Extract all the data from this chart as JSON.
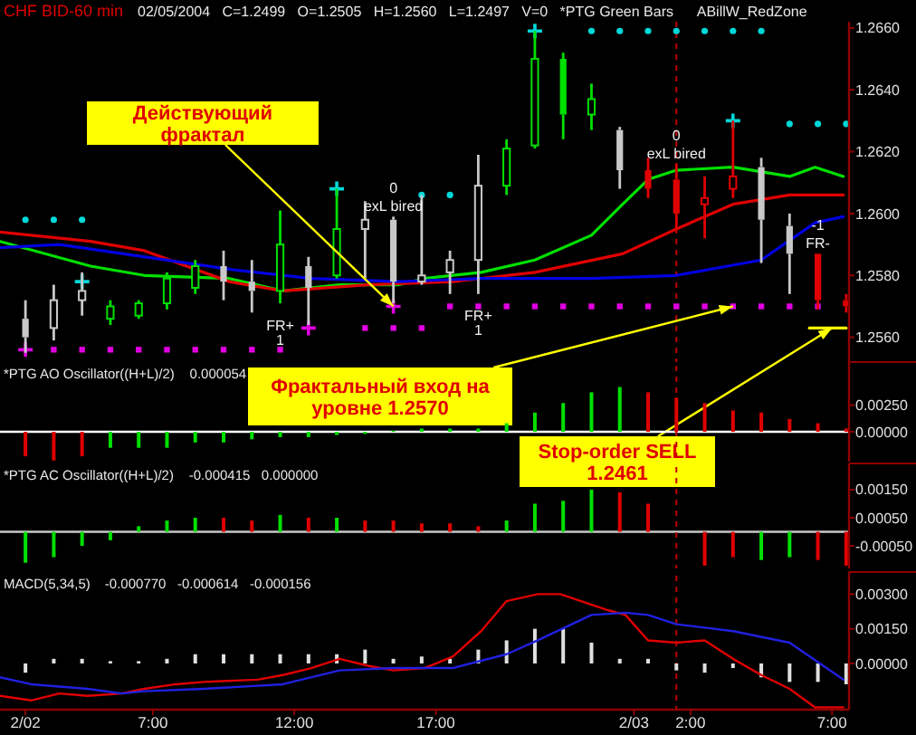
{
  "chart_data": [
    {
      "type": "candlestick",
      "title": "CHF BID-60 min",
      "subtitle": "02/05/2004   C=1.2499   O=1.2505   H=1.2560   L=1.2497   V=0   *PTG Green Bars      ABillW_RedZone",
      "x": [
        "2004-02-02T02:30",
        "2004-02-02T03:30",
        "2004-02-02T04:30",
        "2004-02-02T05:30",
        "2004-02-02T06:30",
        "2004-02-02T07:30",
        "2004-02-02T08:30",
        "2004-02-02T09:30",
        "2004-02-02T10:30",
        "2004-02-02T11:30",
        "2004-02-02T12:30",
        "2004-02-02T13:30",
        "2004-02-02T14:30",
        "2004-02-02T15:30",
        "2004-02-02T16:30",
        "2004-02-02T17:30",
        "2004-02-02T18:30",
        "2004-02-02T19:30",
        "2004-02-02T20:30",
        "2004-02-02T21:30",
        "2004-02-02T22:30",
        "2004-02-02T23:30",
        "2004-02-03T00:30",
        "2004-02-03T01:30",
        "2004-02-03T02:30",
        "2004-02-03T03:30",
        "2004-02-03T04:30",
        "2004-02-03T05:30",
        "2004-02-03T06:30",
        "2004-02-03T07:30"
      ],
      "ohlc": [
        [
          1.2566,
          1.2572,
          1.2555,
          1.256
        ],
        [
          1.2563,
          1.2577,
          1.2559,
          1.2572
        ],
        [
          1.2572,
          1.2581,
          1.2567,
          1.2575
        ],
        [
          1.2566,
          1.2572,
          1.2564,
          1.257
        ],
        [
          1.2567,
          1.2572,
          1.2566,
          1.2571
        ],
        [
          1.2571,
          1.2581,
          1.2569,
          1.2579
        ],
        [
          1.2576,
          1.2585,
          1.2574,
          1.2583
        ],
        [
          1.2583,
          1.2588,
          1.2572,
          1.2578
        ],
        [
          1.2578,
          1.2585,
          1.2568,
          1.2575
        ],
        [
          1.2575,
          1.2601,
          1.2571,
          1.259
        ],
        [
          1.2583,
          1.2586,
          1.2564,
          1.2576
        ],
        [
          1.258,
          1.2608,
          1.2579,
          1.2595
        ],
        [
          1.2595,
          1.2604,
          1.2579,
          1.2598
        ],
        [
          1.2598,
          1.2599,
          1.2571,
          1.2578
        ],
        [
          1.2578,
          1.2606,
          1.2577,
          1.258
        ],
        [
          1.2581,
          1.2588,
          1.2574,
          1.2585
        ],
        [
          1.2585,
          1.2619,
          1.2574,
          1.2609
        ],
        [
          1.2609,
          1.2624,
          1.2606,
          1.2621
        ],
        [
          1.2622,
          1.2659,
          1.2621,
          1.265
        ],
        [
          1.265,
          1.2652,
          1.2624,
          1.2632
        ],
        [
          1.2632,
          1.2642,
          1.2627,
          1.2637
        ],
        [
          1.2627,
          1.2628,
          1.2608,
          1.2614
        ],
        [
          1.2614,
          1.2618,
          1.2605,
          1.2608
        ],
        [
          1.2611,
          1.2616,
          1.2595,
          1.26
        ],
        [
          1.2603,
          1.2612,
          1.2592,
          1.2605
        ],
        [
          1.2608,
          1.263,
          1.2605,
          1.2612
        ],
        [
          1.2615,
          1.2618,
          1.2584,
          1.2598
        ],
        [
          1.2596,
          1.26,
          1.2574,
          1.2587
        ],
        [
          1.2587,
          1.2587,
          1.2569,
          1.2572
        ],
        [
          1.2572,
          1.2574,
          1.2568,
          1.257
        ]
      ],
      "colors": [
        "#c8c8c8",
        "#c8c8c8",
        "#c8c8c8",
        "#00e000",
        "#00e000",
        "#00e000",
        "#00e000",
        "#c8c8c8",
        "#c8c8c8",
        "#00e000",
        "#c8c8c8",
        "#00e000",
        "#c8c8c8",
        "#c8c8c8",
        "#c8c8c8",
        "#c8c8c8",
        "#c8c8c8",
        "#00e000",
        "#00e000",
        "#00e000",
        "#00e000",
        "#c8c8c8",
        "#e00000",
        "#e00000",
        "#e00000",
        "#e00000",
        "#c8c8c8",
        "#c8c8c8",
        "#e00000",
        "#e00000"
      ],
      "series": [
        {
          "type": "line",
          "color": "#00e000",
          "x": [
            "2004-02-02T01:36",
            "2004-02-02T04:48",
            "2004-02-02T06:42",
            "2004-02-02T09:42",
            "2004-02-02T11:36",
            "2004-02-02T13:36",
            "2004-02-02T15:42",
            "2004-02-02T16:36",
            "2004-02-02T18:36",
            "2004-02-02T20:30",
            "2004-02-02T22:30",
            "2004-02-02T23:36",
            "2004-02-03T00:30",
            "2004-02-03T01:30",
            "2004-02-03T03:30",
            "2004-02-03T05:30",
            "2004-02-03T06:24",
            "2004-02-03T07:24"
          ],
          "values": [
            1.2591,
            1.2583,
            1.258,
            1.2579,
            1.2575,
            1.2577,
            1.2577,
            1.2579,
            1.2581,
            1.2585,
            1.2593,
            1.2603,
            1.2611,
            1.2614,
            1.2615,
            1.2612,
            1.2615,
            1.2612
          ]
        },
        {
          "type": "line",
          "color": "#e00000",
          "x": [
            "2004-02-02T01:36",
            "2004-02-02T04:48",
            "2004-02-02T06:42",
            "2004-02-02T09:42",
            "2004-02-02T11:36",
            "2004-02-02T14:36",
            "2004-02-02T17:36",
            "2004-02-02T20:30",
            "2004-02-02T23:36",
            "2004-02-03T01:30",
            "2004-02-03T03:30",
            "2004-02-03T05:30",
            "2004-02-03T07:24"
          ],
          "values": [
            1.2594,
            1.2591,
            1.2588,
            1.2578,
            1.2575,
            1.2577,
            1.2578,
            1.2581,
            1.2587,
            1.2595,
            1.2603,
            1.2606,
            1.2606
          ]
        },
        {
          "type": "line",
          "color": "#0000e0",
          "x": [
            "2004-02-02T01:36",
            "2004-02-02T03:42",
            "2004-02-02T09:42",
            "2004-02-02T12:36",
            "2004-02-02T15:42",
            "2004-02-02T18:36",
            "2004-02-02T22:30",
            "2004-02-03T01:30",
            "2004-02-03T04:30",
            "2004-02-03T06:24",
            "2004-02-03T07:24"
          ],
          "values": [
            1.2589,
            1.259,
            1.2582,
            1.2579,
            1.2578,
            1.2579,
            1.2579,
            1.258,
            1.2585,
            1.2597,
            1.2599
          ]
        },
        {
          "type": "scatter",
          "marker": "circle",
          "color": "#00d8d8",
          "x": [
            "2004-02-02T02:30",
            "2004-02-02T03:30",
            "2004-02-02T04:30",
            "2004-02-02T16:30",
            "2004-02-02T17:30",
            "2004-02-02T22:30",
            "2004-02-02T23:30",
            "2004-02-03T00:30",
            "2004-02-03T01:30",
            "2004-02-03T02:30",
            "2004-02-03T03:30",
            "2004-02-03T04:30",
            "2004-02-03T05:30",
            "2004-02-03T06:30",
            "2004-02-03T07:30"
          ],
          "values": [
            1.2598,
            1.2598,
            1.2598,
            1.2606,
            1.2606,
            1.2659,
            1.2659,
            1.2659,
            1.2659,
            1.2659,
            1.2659,
            1.2659,
            1.2629,
            1.2629,
            1.2629
          ]
        },
        {
          "type": "scatter",
          "marker": "square",
          "color": "#e000e0",
          "x": [
            "2004-02-02T03:30",
            "2004-02-02T04:30",
            "2004-02-02T05:30",
            "2004-02-02T06:30",
            "2004-02-02T07:30",
            "2004-02-02T08:30",
            "2004-02-02T09:30",
            "2004-02-02T10:30",
            "2004-02-02T11:30",
            "2004-02-02T14:30",
            "2004-02-02T15:30",
            "2004-02-02T16:30",
            "2004-02-02T17:30",
            "2004-02-02T18:30",
            "2004-02-02T19:30",
            "2004-02-02T20:30",
            "2004-02-02T21:30",
            "2004-02-02T22:30",
            "2004-02-02T23:30",
            "2004-02-03T00:30",
            "2004-02-03T01:30",
            "2004-02-03T02:30",
            "2004-02-03T03:30",
            "2004-02-03T04:30",
            "2004-02-03T05:30",
            "2004-02-03T06:30"
          ],
          "values": [
            1.2556,
            1.2556,
            1.2556,
            1.2556,
            1.2556,
            1.2556,
            1.2556,
            1.2556,
            1.2556,
            1.2563,
            1.2563,
            1.2563,
            1.257,
            1.257,
            1.257,
            1.257,
            1.257,
            1.257,
            1.257,
            1.257,
            1.257,
            1.257,
            1.257,
            1.257,
            1.257,
            1.257
          ]
        },
        {
          "type": "scatter",
          "marker": "cross",
          "color": "#00d8d8",
          "x": [
            "2004-02-02T04:30",
            "2004-02-02T13:30",
            "2004-02-02T20:30",
            "2004-02-03T03:30"
          ],
          "values": [
            1.2578,
            1.2608,
            1.2659,
            1.263
          ]
        },
        {
          "type": "scatter",
          "marker": "cross",
          "color": "#e000e0",
          "x": [
            "2004-02-02T02:30",
            "2004-02-02T12:30",
            "2004-02-02T15:30"
          ],
          "values": [
            1.2556,
            1.2563,
            1.257
          ]
        },
        {
          "type": "line",
          "color": "#ffff00",
          "x": [
            "2004-02-03T06:12",
            "2004-02-03T07:30"
          ],
          "values": [
            1.2563,
            1.2563
          ]
        }
      ],
      "xlim": [
        "2004-02-02T01:36",
        "2004-02-03T07:36"
      ],
      "ylim": [
        1.2552,
        1.2662
      ],
      "yticks": [
        {
          "value": 1.256,
          "label": "1.2560"
        },
        {
          "value": 1.258,
          "label": "1.2580"
        },
        {
          "value": 1.26,
          "label": "1.2600"
        },
        {
          "value": 1.262,
          "label": "1.2620"
        },
        {
          "value": 1.264,
          "label": "1.2640"
        },
        {
          "value": 1.266,
          "label": "1.2660"
        }
      ],
      "tick_labels": "y",
      "ref_lines": [
        {
          "axis": "x",
          "value": "2004-02-03T01:30",
          "color": "#c00000",
          "line_style": "dashed"
        }
      ],
      "annotations": [
        {
          "text": "0",
          "x": "2004-02-02T15:30",
          "y": 1.2599
        },
        {
          "text": "exL bired",
          "x": "2004-02-02T15:30",
          "y": 1.2599
        },
        {
          "text": "0",
          "x": "2004-02-03T01:30",
          "y": 1.2616
        },
        {
          "text": "exL bired",
          "x": "2004-02-03T01:30",
          "y": 1.2616
        },
        {
          "text": "FR+",
          "x": "2004-02-02T11:30",
          "y": 1.2571
        },
        {
          "text": "1",
          "x": "2004-02-02T11:30",
          "y": 1.2571
        },
        {
          "text": "FR+",
          "x": "2004-02-02T18:30",
          "y": 1.2574
        },
        {
          "text": "1",
          "x": "2004-02-02T18:30",
          "y": 1.2574
        },
        {
          "text": "-1",
          "x": "2004-02-03T06:30",
          "y": 1.2587
        },
        {
          "text": "FR-",
          "x": "2004-02-03T06:30",
          "y": 1.2587
        },
        {
          "text": "Действующий фрактал",
          "x": "2004-02-02T15:30",
          "y": 1.257
        },
        {
          "text": "Фрактальный вход на уровне 1.2570",
          "x": "2004-02-03T03:30",
          "y": 1.257
        },
        {
          "text": "Stop-order SELL 1.2461",
          "x": "2004-02-03T07:00",
          "y": 1.2563
        }
      ]
    },
    {
      "type": "bar",
      "title": "*PTG AO Oscillator((H+L)/2)",
      "subtitle": "0.000054",
      "x": [
        "2004-02-02T02:30",
        "2004-02-02T03:30",
        "2004-02-02T04:30",
        "2004-02-02T05:30",
        "2004-02-02T06:30",
        "2004-02-02T07:30",
        "2004-02-02T08:30",
        "2004-02-02T09:30",
        "2004-02-02T10:30",
        "2004-02-02T11:30",
        "2004-02-02T12:30",
        "2004-02-02T13:30",
        "2004-02-02T14:30",
        "2004-02-02T15:30",
        "2004-02-02T16:30",
        "2004-02-02T17:30",
        "2004-02-02T18:30",
        "2004-02-02T19:30",
        "2004-02-02T20:30",
        "2004-02-02T21:30",
        "2004-02-02T22:30",
        "2004-02-02T23:30",
        "2004-02-03T00:30",
        "2004-02-03T01:30",
        "2004-02-03T02:30",
        "2004-02-03T03:30",
        "2004-02-03T04:30",
        "2004-02-03T05:30",
        "2004-02-03T06:30",
        "2004-02-03T07:30"
      ],
      "values": [
        -0.0023,
        -0.0027,
        -0.0023,
        -0.0015,
        -0.0015,
        -0.0015,
        -0.001,
        -0.001,
        -0.0007,
        -0.0005,
        -0.0005,
        -0.0003,
        -0.0002,
        0.0001,
        0.0003,
        0.0003,
        0.0003,
        0.0008,
        0.0018,
        0.0027,
        0.0037,
        0.0042,
        0.0037,
        0.0032,
        0.0027,
        0.002,
        0.0018,
        0.0012,
        0.0008,
        0.0003
      ],
      "colors": [
        "#e00000",
        "#e00000",
        "#e00000",
        "#00e000",
        "#00e000",
        "#00e000",
        "#00e000",
        "#00e000",
        "#00e000",
        "#00e000",
        "#00e000",
        "#00e000",
        "#00e000",
        "#00e000",
        "#00e000",
        "#00e000",
        "#00e000",
        "#00e000",
        "#00e000",
        "#00e000",
        "#00e000",
        "#00e000",
        "#e00000",
        "#e00000",
        "#e00000",
        "#e00000",
        "#e00000",
        "#e00000",
        "#e00000",
        "#e00000"
      ],
      "xlim": [
        "2004-02-02T01:36",
        "2004-02-03T07:36"
      ],
      "ylim": [
        -0.0028,
        0.0062
      ],
      "yticks": [
        {
          "value": 0,
          "label": "0.00000"
        },
        {
          "value": 0.0025,
          "label": "0.00250"
        }
      ],
      "tick_labels": "y",
      "ref_lines": [
        {
          "axis": "y",
          "value": 0,
          "color": "#ffffff",
          "line_style": "solid"
        },
        {
          "axis": "x",
          "value": "2004-02-03T01:30",
          "color": "#c00000",
          "line_style": "dashed"
        }
      ]
    },
    {
      "type": "bar",
      "title": "*PTG AC Oscillator((H+L)/2)",
      "subtitle": "-0.000415   0.000000",
      "x": [
        "2004-02-02T02:30",
        "2004-02-02T03:30",
        "2004-02-02T04:30",
        "2004-02-02T05:30",
        "2004-02-02T06:30",
        "2004-02-02T07:30",
        "2004-02-02T08:30",
        "2004-02-02T09:30",
        "2004-02-02T10:30",
        "2004-02-02T11:30",
        "2004-02-02T12:30",
        "2004-02-02T13:30",
        "2004-02-02T14:30",
        "2004-02-02T15:30",
        "2004-02-02T16:30",
        "2004-02-02T17:30",
        "2004-02-02T18:30",
        "2004-02-02T19:30",
        "2004-02-02T20:30",
        "2004-02-02T21:30",
        "2004-02-02T22:30",
        "2004-02-02T23:30",
        "2004-02-03T00:30",
        "2004-02-03T01:30",
        "2004-02-03T02:30",
        "2004-02-03T03:30",
        "2004-02-03T04:30",
        "2004-02-03T05:30",
        "2004-02-03T06:30",
        "2004-02-03T07:30"
      ],
      "values": [
        -0.0011,
        -0.0009,
        -0.0005,
        -0.0003,
        0.0002,
        0.0004,
        0.0005,
        0.0005,
        0.0004,
        0.0006,
        0.0005,
        0.0005,
        0.0004,
        0.0004,
        0.0003,
        0.0003,
        0.0002,
        0.0004,
        0.001,
        0.0011,
        0.0015,
        0.0014,
        0.001,
        null,
        -0.0012,
        -0.0009,
        -0.001,
        -0.0009,
        -0.001,
        -0.0012
      ],
      "colors": [
        "#00e000",
        "#00e000",
        "#00e000",
        "#00e000",
        "#00e000",
        "#00e000",
        "#00e000",
        "#e00000",
        "#e00000",
        "#00e000",
        "#e00000",
        "#00e000",
        "#e00000",
        "#e00000",
        "#e00000",
        "#e00000",
        "#e00000",
        "#00e000",
        "#00e000",
        "#00e000",
        "#00e000",
        "#e00000",
        "#e00000",
        "#e00000",
        "#e00000",
        "#e00000",
        "#00e000",
        "#00e000",
        "#e00000",
        "#e00000"
      ],
      "xlim": [
        "2004-02-02T01:36",
        "2004-02-03T07:36"
      ],
      "ylim": [
        -0.0013,
        0.0023
      ],
      "yticks": [
        {
          "value": -0.0005,
          "label": "-0.00050"
        },
        {
          "value": 0.0005,
          "label": "0.00050"
        },
        {
          "value": 0.0015,
          "label": "0.00150"
        }
      ],
      "tick_labels": "y",
      "ref_lines": [
        {
          "axis": "y",
          "value": 0,
          "color": "#c8c8c8",
          "line_style": "solid"
        },
        {
          "axis": "x",
          "value": "2004-02-03T01:30",
          "color": "#c00000",
          "line_style": "dashed"
        }
      ]
    },
    {
      "type": "line",
      "title": "MACD(5,34,5)",
      "subtitle": "-0.000770   -0.000614   -0.000156",
      "series": [
        {
          "type": "bar",
          "color": "#e0e0e0",
          "x": [
            "2004-02-02T02:30",
            "2004-02-02T03:30",
            "2004-02-02T04:30",
            "2004-02-02T05:30",
            "2004-02-02T06:30",
            "2004-02-02T07:30",
            "2004-02-02T08:30",
            "2004-02-02T09:30",
            "2004-02-02T10:30",
            "2004-02-02T11:30",
            "2004-02-02T12:30",
            "2004-02-02T13:30",
            "2004-02-02T14:30",
            "2004-02-02T15:30",
            "2004-02-02T16:30",
            "2004-02-02T17:30",
            "2004-02-02T18:30",
            "2004-02-02T19:30",
            "2004-02-02T20:30",
            "2004-02-02T21:30",
            "2004-02-02T22:30",
            "2004-02-02T23:30",
            "2004-02-03T00:30",
            "2004-02-03T01:30",
            "2004-02-03T02:30",
            "2004-02-03T03:30",
            "2004-02-03T04:30",
            "2004-02-03T05:30",
            "2004-02-03T06:30",
            "2004-02-03T07:30"
          ],
          "values": [
            -0.0004,
            0.0002,
            0.0002,
            0.0001,
            0.0001,
            0.0002,
            0.0004,
            0.0004,
            0.0004,
            0.0004,
            0.0004,
            0.0004,
            0.0006,
            0.0002,
            0.0003,
            0.0002,
            0.0006,
            0.001,
            0.0015,
            0.0015,
            0.0009,
            0.0002,
            0.0002,
            -0.0003,
            -0.0004,
            -0.0002,
            -0.0006,
            -0.0008,
            -0.0008,
            -0.0009
          ]
        },
        {
          "type": "line",
          "color": "#e00000",
          "x": [
            "2004-02-02T01:36",
            "2004-02-02T02:42",
            "2004-02-02T03:42",
            "2004-02-02T04:42",
            "2004-02-02T05:54",
            "2004-02-02T06:42",
            "2004-02-02T07:48",
            "2004-02-02T08:48",
            "2004-02-02T10:42",
            "2004-02-02T11:36",
            "2004-02-02T12:36",
            "2004-02-02T13:36",
            "2004-02-02T14:36",
            "2004-02-02T15:30",
            "2004-02-02T16:36",
            "2004-02-02T17:36",
            "2004-02-02T18:36",
            "2004-02-02T19:30",
            "2004-02-02T20:36",
            "2004-02-02T21:24",
            "2004-02-02T23:06",
            "2004-02-02T23:42",
            "2004-02-03T00:30",
            "2004-02-03T01:30",
            "2004-02-03T02:30",
            "2004-02-03T03:30",
            "2004-02-03T04:30",
            "2004-02-03T05:30",
            "2004-02-03T06:24",
            "2004-02-03T07:24"
          ],
          "values": [
            -0.0014,
            -0.0016,
            -0.0013,
            -0.0014,
            -0.0013,
            -0.0011,
            -0.0009,
            -0.0008,
            -0.0007,
            -0.0005,
            -0.0002,
            0.0002,
            -0.0001,
            -0.0003,
            -0.0002,
            0.0003,
            0.0014,
            0.0027,
            0.003,
            0.003,
            0.0023,
            0.0021,
            0.001,
            0.0009,
            0.001,
            0.0002,
            -0.0005,
            -0.0011,
            -0.0019,
            -0.0019
          ]
        },
        {
          "type": "line",
          "color": "#2020e0",
          "x": [
            "2004-02-02T01:36",
            "2004-02-02T02:42",
            "2004-02-02T03:42",
            "2004-02-02T04:42",
            "2004-02-02T05:54",
            "2004-02-02T06:42",
            "2004-02-02T08:48",
            "2004-02-02T11:36",
            "2004-02-02T13:36",
            "2004-02-02T15:30",
            "2004-02-02T17:36",
            "2004-02-02T19:30",
            "2004-02-02T20:36",
            "2004-02-02T22:30",
            "2004-02-02T23:42",
            "2004-02-03T00:30",
            "2004-02-03T01:30",
            "2004-02-03T03:30",
            "2004-02-03T05:30",
            "2004-02-03T07:24"
          ],
          "values": [
            -0.0006,
            -0.0009,
            -0.001,
            -0.0011,
            -0.0013,
            -0.0012,
            -0.0011,
            -0.0009,
            -0.0003,
            -0.0002,
            -0.0002,
            0.0004,
            0.001,
            0.0021,
            0.0022,
            0.0021,
            0.0017,
            0.0014,
            0.0009,
            -0.0007
          ]
        }
      ],
      "xlim": [
        "2004-02-02T01:36",
        "2004-02-03T07:36"
      ],
      "ylim": [
        -0.002,
        0.0038
      ],
      "yticks": [
        {
          "value": 0,
          "label": "0.00000"
        },
        {
          "value": 0.0015,
          "label": "0.00150"
        },
        {
          "value": 0.003,
          "label": "0.00300"
        }
      ],
      "xticks": [
        {
          "value": "2004-02-02T02:30",
          "label": "2/02"
        },
        {
          "value": "2004-02-02T07:00",
          "label": "7:00"
        },
        {
          "value": "2004-02-02T12:00",
          "label": "12:00"
        },
        {
          "value": "2004-02-02T17:00",
          "label": "17:00"
        },
        {
          "value": "2004-02-03T00:00",
          "label": "2/03"
        },
        {
          "value": "2004-02-03T02:00",
          "label": "2:00"
        },
        {
          "value": "2004-02-03T07:00",
          "label": "7:00"
        }
      ],
      "ref_lines": [
        {
          "axis": "x",
          "value": "2004-02-03T01:30",
          "color": "#c00000",
          "line_style": "dashed"
        }
      ]
    }
  ]
}
